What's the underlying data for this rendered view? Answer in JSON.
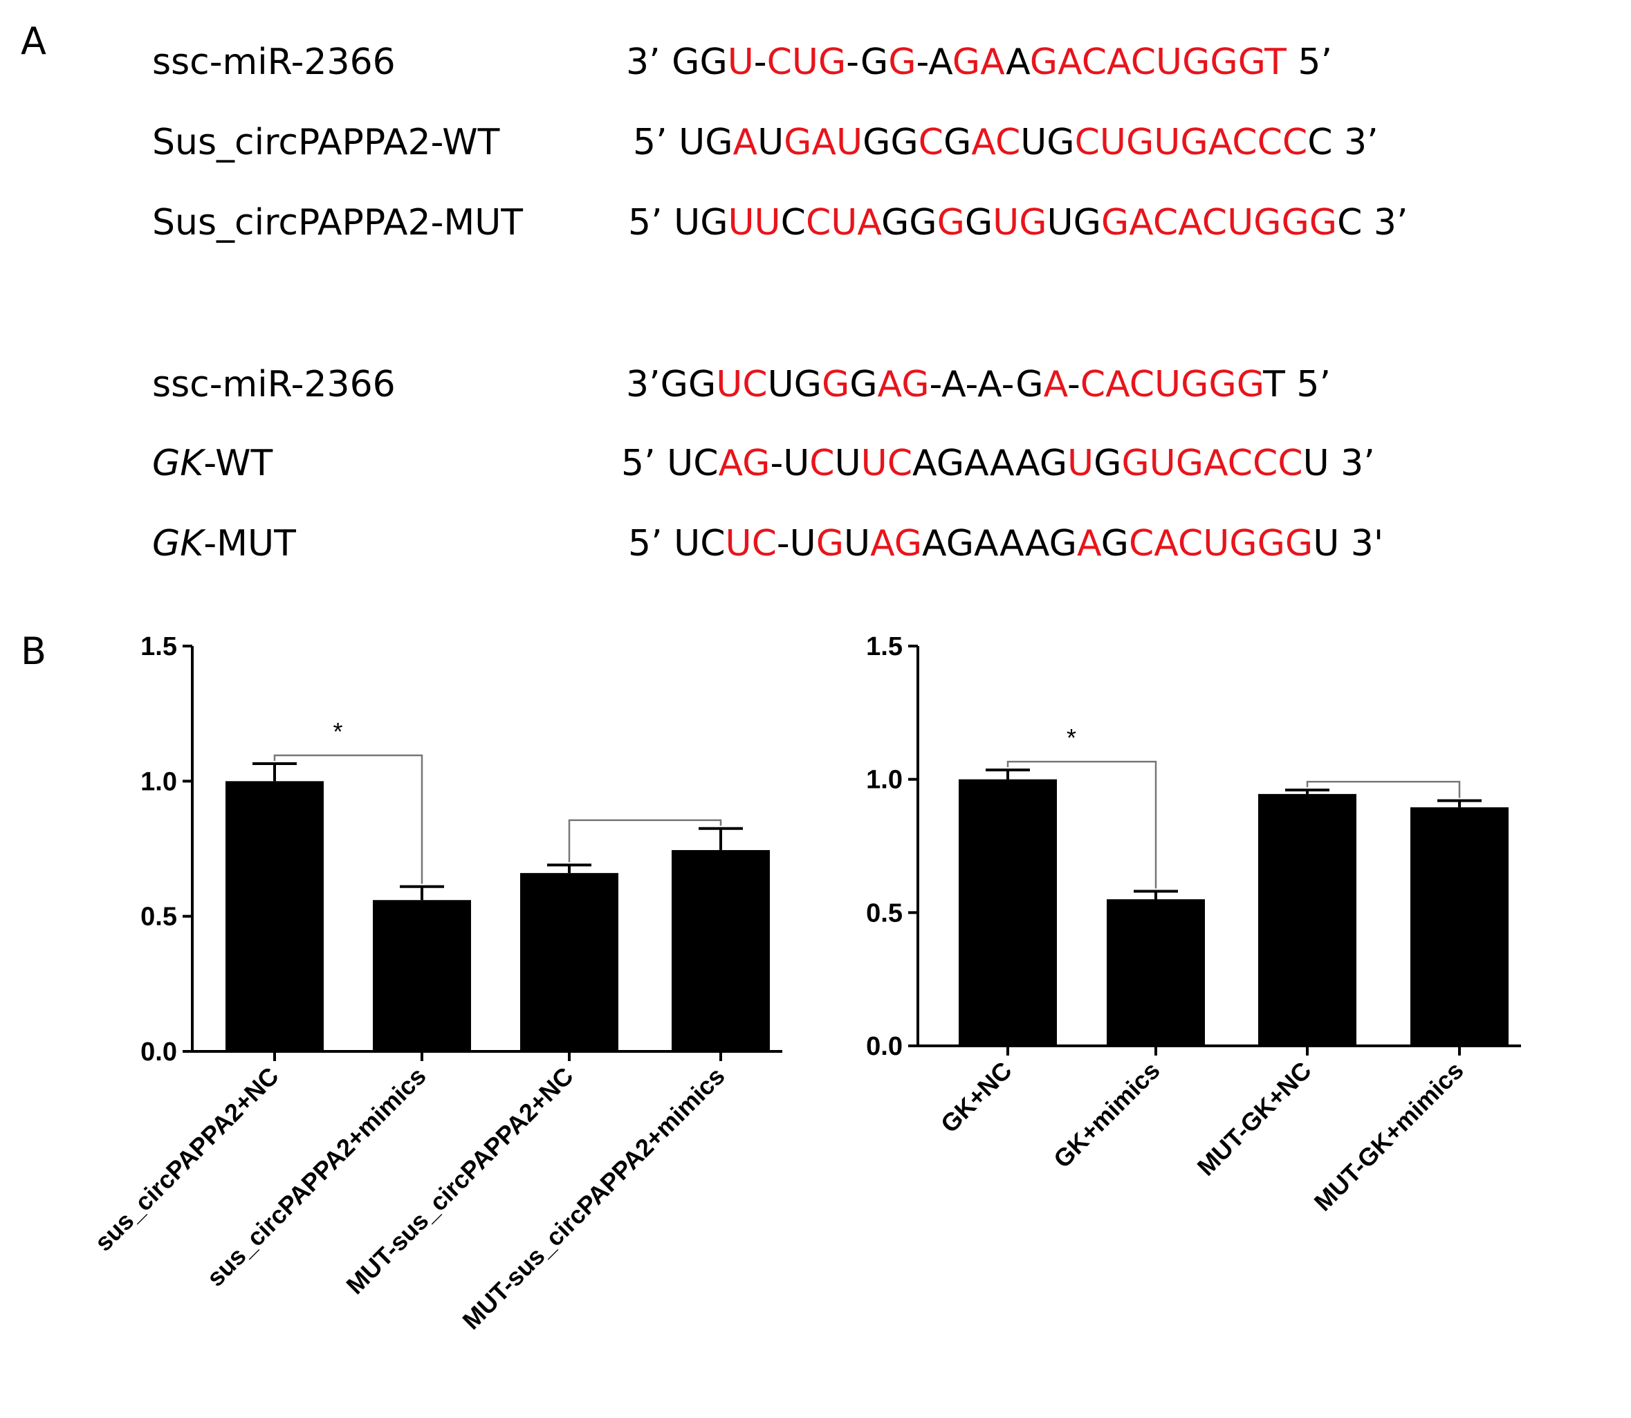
{
  "panel_labels": {
    "a": "A",
    "b": "B"
  },
  "colors": {
    "highlight": "#e8141b",
    "text": "#000000",
    "bar": "#000000"
  },
  "sequences": {
    "group1": [
      {
        "name": "ssc-miR-2366",
        "italic_prefix": "",
        "name_rest": "ssc-miR-2366",
        "segments": [
          {
            "t": "3’ GG",
            "h": false
          },
          {
            "t": "U",
            "h": true
          },
          {
            "t": "-",
            "h": false
          },
          {
            "t": "CUG",
            "h": true
          },
          {
            "t": "-G",
            "h": false
          },
          {
            "t": "G",
            "h": true
          },
          {
            "t": "-A",
            "h": false
          },
          {
            "t": "GA",
            "h": true
          },
          {
            "t": "A",
            "h": false
          },
          {
            "t": "GACACUGGGT",
            "h": true
          },
          {
            "t": " 5’",
            "h": false
          }
        ]
      },
      {
        "name": "Sus_circPAPPA2-WT",
        "italic_prefix": "",
        "name_rest": "Sus_circPAPPA2-WT",
        "segments": [
          {
            "t": "5’ UG",
            "h": false
          },
          {
            "t": "A",
            "h": true
          },
          {
            "t": "U",
            "h": false
          },
          {
            "t": "GAU",
            "h": true
          },
          {
            "t": "GG",
            "h": false
          },
          {
            "t": "C",
            "h": true
          },
          {
            "t": "G",
            "h": false
          },
          {
            "t": "AC",
            "h": true
          },
          {
            "t": "UG",
            "h": false
          },
          {
            "t": "CUGUGACCC",
            "h": true
          },
          {
            "t": "C 3’",
            "h": false
          }
        ]
      },
      {
        "name": "Sus_circPAPPA2-MUT",
        "italic_prefix": "",
        "name_rest": "Sus_circPAPPA2-MUT",
        "segments": [
          {
            "t": "5’ UG",
            "h": false
          },
          {
            "t": "UU",
            "h": true
          },
          {
            "t": "C",
            "h": false
          },
          {
            "t": "CUA",
            "h": true
          },
          {
            "t": "GG",
            "h": false
          },
          {
            "t": "G",
            "h": true
          },
          {
            "t": "G",
            "h": false
          },
          {
            "t": "UG",
            "h": true
          },
          {
            "t": "UG",
            "h": false
          },
          {
            "t": "GACACUGGG",
            "h": true
          },
          {
            "t": "C 3’",
            "h": false
          }
        ]
      }
    ],
    "group2": [
      {
        "name": "ssc-miR-2366",
        "italic_prefix": "",
        "name_rest": "ssc-miR-2366",
        "segments": [
          {
            "t": "3’GG",
            "h": false
          },
          {
            "t": "UC",
            "h": true
          },
          {
            "t": "UG",
            "h": false
          },
          {
            "t": "G",
            "h": true
          },
          {
            "t": "G",
            "h": false
          },
          {
            "t": "AG",
            "h": true
          },
          {
            "t": "-A-A-G",
            "h": false
          },
          {
            "t": "A",
            "h": true
          },
          {
            "t": "-",
            "h": false
          },
          {
            "t": "CACUGGG",
            "h": true
          },
          {
            "t": "T 5’",
            "h": false
          }
        ]
      },
      {
        "name": "GK-WT",
        "italic_prefix": "GK",
        "name_rest": "-WT",
        "segments": [
          {
            "t": "5’ UC",
            "h": false
          },
          {
            "t": "AG",
            "h": true
          },
          {
            "t": "-U",
            "h": false
          },
          {
            "t": "C",
            "h": true
          },
          {
            "t": "U",
            "h": false
          },
          {
            "t": "UC",
            "h": true
          },
          {
            "t": "AGAAAG",
            "h": false
          },
          {
            "t": "U",
            "h": true
          },
          {
            "t": "G",
            "h": false
          },
          {
            "t": "GUGACCC",
            "h": true
          },
          {
            "t": "U 3’",
            "h": false
          }
        ]
      },
      {
        "name": "GK-MUT",
        "italic_prefix": "GK",
        "name_rest": "-MUT",
        "segments": [
          {
            "t": "5’ UC",
            "h": false
          },
          {
            "t": "UC",
            "h": true
          },
          {
            "t": "-U",
            "h": false
          },
          {
            "t": "G",
            "h": true
          },
          {
            "t": "U",
            "h": false
          },
          {
            "t": "AG",
            "h": true
          },
          {
            "t": "AGAAAG",
            "h": false
          },
          {
            "t": "A",
            "h": true
          },
          {
            "t": "G",
            "h": false
          },
          {
            "t": "CACUGGG",
            "h": true
          },
          {
            "t": "U 3'",
            "h": false
          }
        ]
      }
    ]
  },
  "chart_data": [
    {
      "type": "bar",
      "categories": [
        "sus_circPAPPA2+NC",
        "sus_circPAPPA2+mimics",
        "MUT-sus_circPAPPA2+NC",
        "MUT-sus_circPAPPA2+mimics"
      ],
      "values": [
        1.0,
        0.56,
        0.66,
        0.745
      ],
      "errors": [
        0.065,
        0.05,
        0.03,
        0.08
      ],
      "ylim": [
        0,
        1.5
      ],
      "yticks": [
        "0.0",
        "0.5",
        "1.0",
        "1.5"
      ],
      "ytick_values": [
        0,
        0.5,
        1.0,
        1.5
      ],
      "xlabel": "",
      "ylabel": "",
      "title": "",
      "brackets": [
        {
          "from": 0,
          "to": 1,
          "label": "*"
        },
        {
          "from": 2,
          "to": 3,
          "label": ""
        }
      ]
    },
    {
      "type": "bar",
      "categories": [
        "GK+NC",
        "GK+mimics",
        "MUT-GK+NC",
        "MUT-GK+mimics"
      ],
      "values": [
        1.0,
        0.55,
        0.945,
        0.895
      ],
      "errors": [
        0.035,
        0.03,
        0.015,
        0.025
      ],
      "ylim": [
        0,
        1.5
      ],
      "yticks": [
        "0.0",
        "0.5",
        "1.0",
        "1.5"
      ],
      "ytick_values": [
        0,
        0.5,
        1.0,
        1.5
      ],
      "xlabel": "",
      "ylabel": "",
      "title": "",
      "brackets": [
        {
          "from": 0,
          "to": 1,
          "label": "*"
        },
        {
          "from": 2,
          "to": 3,
          "label": ""
        }
      ]
    }
  ]
}
